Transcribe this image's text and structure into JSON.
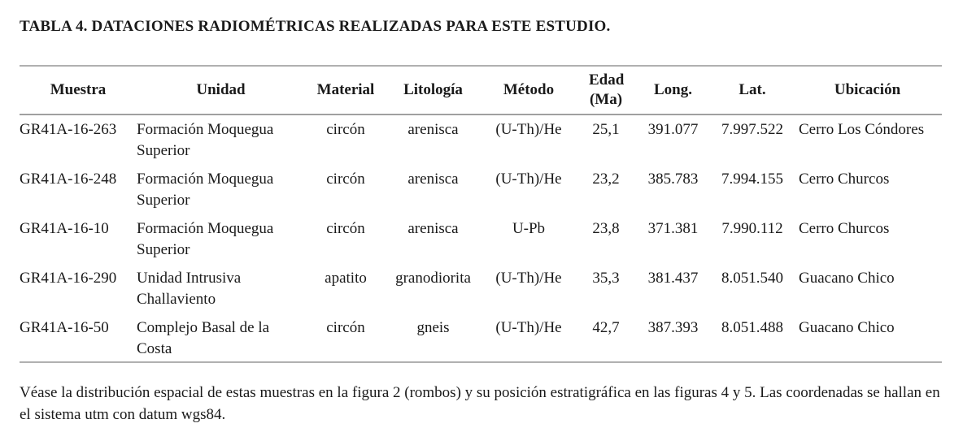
{
  "title": "TABLA 4. DATACIONES RADIOMÉTRICAS REALIZADAS PARA ESTE ESTUDIO.",
  "table": {
    "headers": [
      "Muestra",
      "Unidad",
      "Material",
      "Litología",
      "Método",
      "Edad (Ma)",
      "Long.",
      "Lat.",
      "Ubicación"
    ],
    "rows": [
      [
        "GR41A-16-263",
        "Formación Moquegua Superior",
        "circón",
        "arenisca",
        "(U-Th)/He",
        "25,1",
        "391.077",
        "7.997.522",
        "Cerro Los Cóndores"
      ],
      [
        "GR41A-16-248",
        "Formación Moquegua Superior",
        "circón",
        "arenisca",
        "(U-Th)/He",
        "23,2",
        "385.783",
        "7.994.155",
        "Cerro Churcos"
      ],
      [
        "GR41A-16-10",
        "Formación Moquegua Superior",
        "circón",
        "arenisca",
        "U-Pb",
        "23,8",
        "371.381",
        "7.990.112",
        "Cerro Churcos"
      ],
      [
        "GR41A-16-290",
        "Unidad Intrusiva Challaviento",
        "apatito",
        "granodiorita",
        "(U-Th)/He",
        "35,3",
        "381.437",
        "8.051.540",
        "Guacano Chico"
      ],
      [
        "GR41A-16-50",
        "Complejo Basal de la Costa",
        "circón",
        "gneis",
        "(U-Th)/He",
        "42,7",
        "387.393",
        "8.051.488",
        "Guacano Chico"
      ]
    ]
  },
  "note": "Véase la distribución espacial de estas muestras en la figura 2 (rombos) y su posición estratigráfica en las figuras 4 y 5. Las coordenadas se hallan en el sistema utm con datum wgs84."
}
